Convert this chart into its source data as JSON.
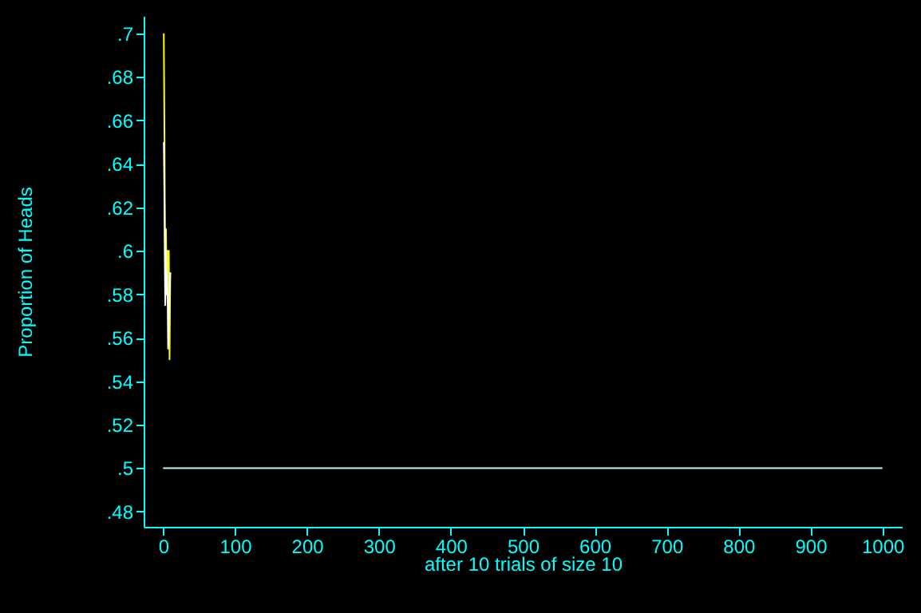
{
  "chart_data": {
    "type": "line",
    "xlabel": "after 10 trials of size 10",
    "ylabel": "Proportion of Heads",
    "xlim": [
      -27,
      1027
    ],
    "xticks": [
      0,
      100,
      200,
      300,
      400,
      500,
      600,
      700,
      800,
      900,
      1000
    ],
    "ylim": [
      0.473,
      0.708
    ],
    "yticks": [
      {
        "value": 0.48,
        "label": ".48"
      },
      {
        "value": 0.5,
        "label": ".5"
      },
      {
        "value": 0.52,
        "label": ".52"
      },
      {
        "value": 0.54,
        "label": ".54"
      },
      {
        "value": 0.56,
        "label": ".56"
      },
      {
        "value": 0.58,
        "label": ".58"
      },
      {
        "value": 0.6,
        "label": ".6"
      },
      {
        "value": 0.62,
        "label": ".62"
      },
      {
        "value": 0.64,
        "label": ".64"
      },
      {
        "value": 0.66,
        "label": ".66"
      },
      {
        "value": 0.68,
        "label": ".68"
      },
      {
        "value": 0.7,
        "label": ".7"
      }
    ],
    "series": [
      {
        "color": "#ffff00",
        "x": [
          1,
          2,
          3,
          4,
          5,
          6,
          7,
          8,
          9,
          10
        ],
        "values": [
          0.7,
          0.65,
          0.575,
          0.61,
          0.58,
          0.6,
          0.59,
          0.6,
          0.55,
          0.59
        ]
      },
      {
        "color": "#ffffff",
        "x": [
          1,
          2,
          3,
          4,
          5,
          6,
          7,
          8,
          9,
          10
        ],
        "values": [
          0.65,
          0.62,
          0.575,
          0.6,
          0.58,
          0.59,
          0.555,
          0.57,
          0.58,
          0.59
        ]
      },
      {
        "color": "#b0ffff",
        "x": [
          0,
          1000
        ],
        "values": [
          0.5,
          0.5
        ]
      }
    ],
    "grid": false,
    "marker": "none",
    "line_style": "solid"
  }
}
